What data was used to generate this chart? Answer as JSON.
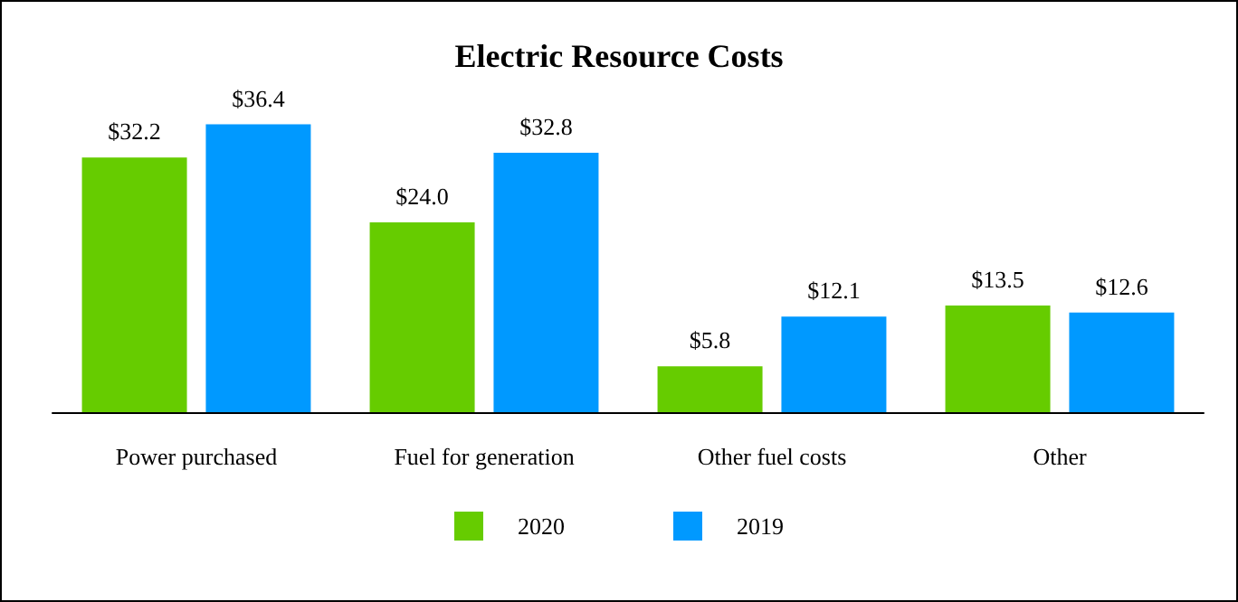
{
  "chart_data": {
    "type": "bar",
    "title": "Electric Resource Costs",
    "categories": [
      "Power purchased",
      "Fuel for generation",
      "Other fuel costs",
      "Other"
    ],
    "series": [
      {
        "name": "2020",
        "color": "#66cc00",
        "values": [
          32.2,
          24.0,
          5.8,
          13.5
        ],
        "value_labels": [
          "$32.2",
          "$24.0",
          "$5.8",
          "$13.5"
        ]
      },
      {
        "name": "2019",
        "color": "#0099ff",
        "values": [
          36.4,
          32.8,
          12.1,
          12.6
        ],
        "value_labels": [
          "$36.4",
          "$32.8",
          "$12.1",
          "$12.6"
        ]
      }
    ],
    "legend": "bottom",
    "grid": false
  }
}
